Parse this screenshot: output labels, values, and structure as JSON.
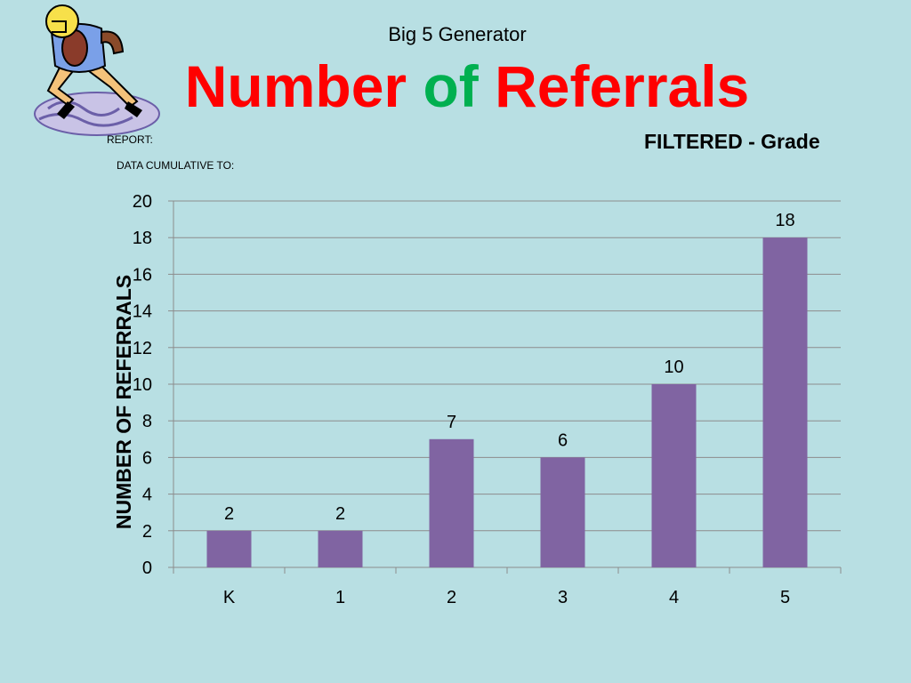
{
  "header": {
    "subtitle": "Big 5 Generator",
    "title_part1": "Number",
    "title_part2": "of",
    "title_part3": "Referrals",
    "report_label": "REPORT:",
    "cumulative_label": "DATA CUMULATIVE TO:",
    "filter_label": "FILTERED - Grade"
  },
  "colors": {
    "background": "#b8dfe3",
    "bar": "#8064a2",
    "title": "#ff0000",
    "title_of": "#00b050"
  },
  "logo": {
    "icon": "football-player-icon"
  },
  "chart_data": {
    "type": "bar",
    "categories": [
      "K",
      "1",
      "2",
      "3",
      "4",
      "5"
    ],
    "values": [
      2,
      2,
      7,
      6,
      10,
      18
    ],
    "xlabel": "",
    "ylabel": "NUMBER OF REFERRALS",
    "ylim": [
      0,
      20
    ],
    "ytick_step": 2,
    "grid": true,
    "data_labels": true,
    "legend": "none"
  }
}
